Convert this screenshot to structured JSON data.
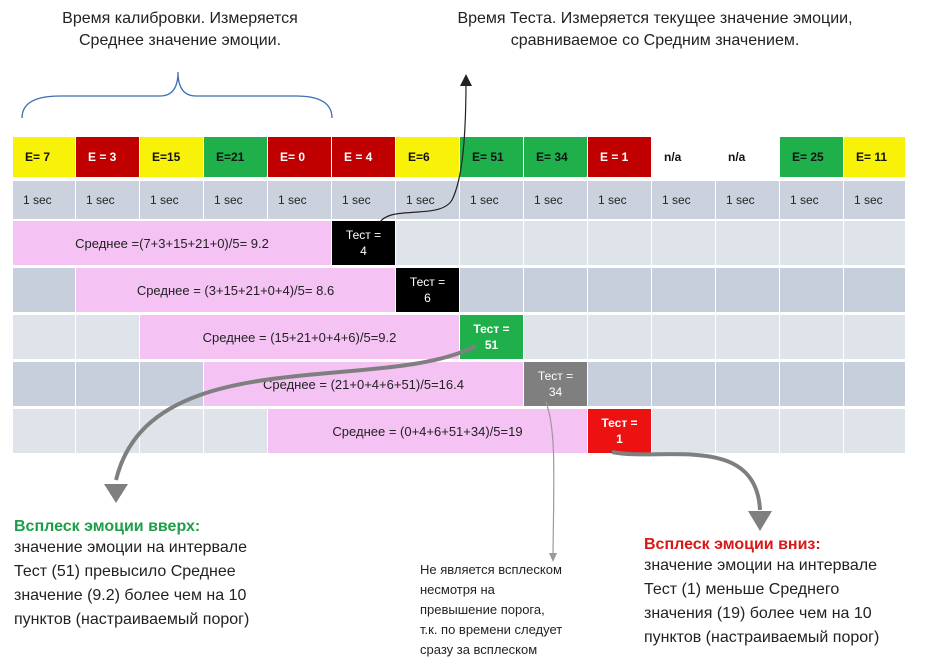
{
  "captions": {
    "calibration": [
      "Время калибровки. Измеряется",
      "Среднее значение эмоции."
    ],
    "test": [
      "Время Теста. Измеряется текущее значение эмоции,",
      "сравниваемое со Средним значением."
    ]
  },
  "scores": [
    {
      "label": "E= 7",
      "color": "#f7f207"
    },
    {
      "label": "E = 3",
      "color": "#c00000"
    },
    {
      "label": "E=15",
      "color": "#f7f207"
    },
    {
      "label": "E=21",
      "color": "#1fb04c"
    },
    {
      "label": "E= 0",
      "color": "#c00000"
    },
    {
      "label": "E = 4",
      "color": "#c00000"
    },
    {
      "label": "E=6",
      "color": "#f7f207"
    },
    {
      "label": "E= 51",
      "color": "#1fb04c"
    },
    {
      "label": "E= 34",
      "color": "#1fb04c"
    },
    {
      "label": "E = 1",
      "color": "#c00000"
    },
    {
      "label": "n/a",
      "color": "#ffffff"
    },
    {
      "label": "n/a",
      "color": "#ffffff"
    },
    {
      "label": "E= 25",
      "color": "#1fb04c"
    },
    {
      "label": "E= 11",
      "color": "#f7f207"
    }
  ],
  "time_label": "1 sec",
  "averages": [
    "Среднее =(7+3+15+21+0)/5= 9.2",
    "Среднее = (3+15+21+0+4)/5= 8.6",
    "Среднее =  (15+21+0+4+6)/5=9.2",
    "Среднее =  (21+0+4+6+51)/5=16.4",
    "Среднее =  (0+4+6+51+34)/5=19"
  ],
  "tests": [
    {
      "label": "Тест =",
      "value": "4",
      "color": "#000000"
    },
    {
      "label": "Тест =",
      "value": "6",
      "color": "#000000"
    },
    {
      "label": "Тест =",
      "value": "51",
      "color": "#1fb04c"
    },
    {
      "label": "Тест =",
      "value": "34",
      "color": "#7f7f7f"
    },
    {
      "label": "Тест =",
      "value": "1",
      "color": "#ee1111"
    }
  ],
  "note_up": {
    "title": "Всплеск эмоции вверх:",
    "lines": [
      "значение эмоции на интервале",
      "Тест (51) превысило Среднее",
      "значение (9.2) более чем на 10",
      "пунктов (настраиваемый порог)"
    ]
  },
  "note_mid": {
    "lines": [
      "Не является всплеском",
      "несмотря на",
      "превышение порога,",
      "т.к. по времени следует",
      "сразу за всплеском"
    ]
  },
  "note_down": {
    "title": "Всплеск эмоции вниз:",
    "lines": [
      "значение эмоции на интервале",
      "Тест (1) меньше Среднего",
      "значения (19) более чем на 10",
      "пунктов (настраиваемый порог)"
    ]
  }
}
